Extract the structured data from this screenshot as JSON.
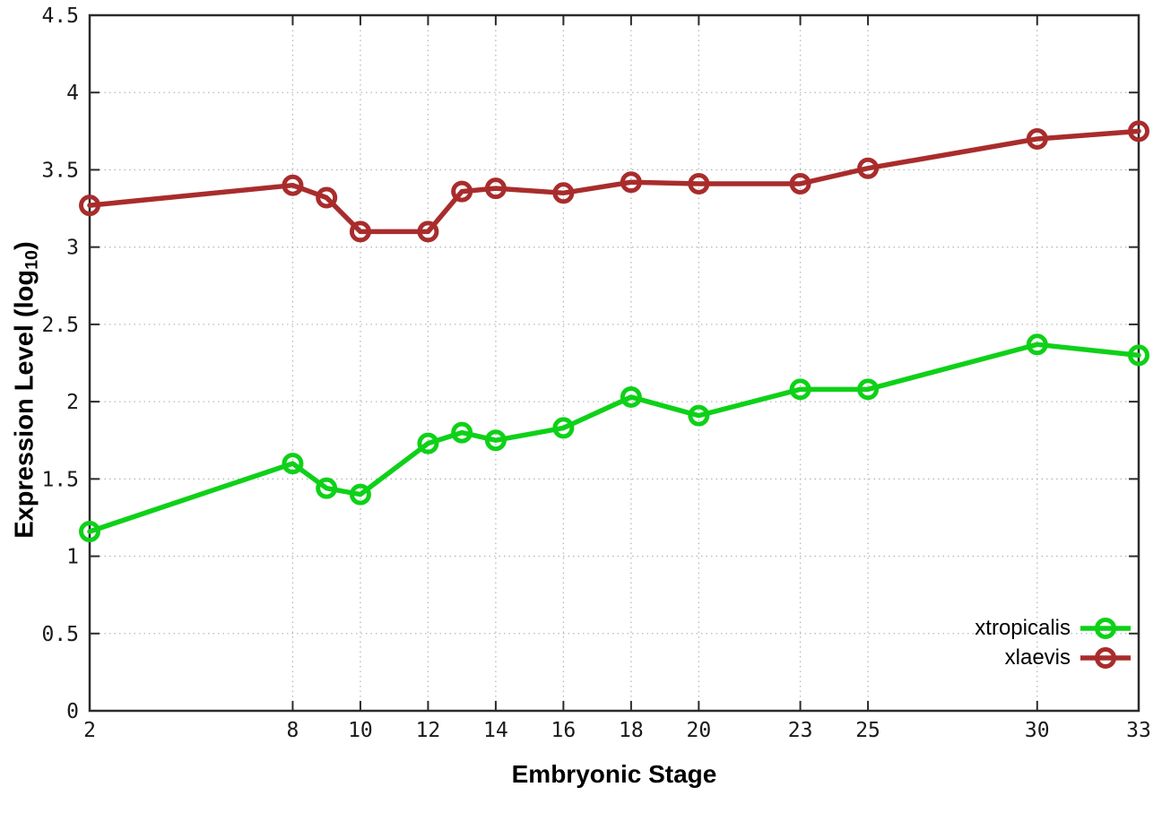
{
  "chart_data": {
    "type": "line",
    "title": "",
    "xlabel": "Embryonic Stage",
    "ylabel": "Expression Level (log10)",
    "ylabel_parts": [
      "Expression Level (log",
      "10",
      ")"
    ],
    "x": [
      2,
      8,
      9,
      10,
      12,
      13,
      14,
      16,
      18,
      20,
      23,
      25,
      30,
      33
    ],
    "x_ticks": [
      2,
      8,
      10,
      12,
      14,
      16,
      18,
      20,
      23,
      25,
      30,
      33
    ],
    "y_ticks": [
      0,
      0.5,
      1,
      1.5,
      2,
      2.5,
      3,
      3.5,
      4,
      4.5
    ],
    "xlim": [
      2,
      33
    ],
    "ylim": [
      0,
      4.5
    ],
    "grid": true,
    "grid_style": "dotted",
    "legend_position": "inside-bottom-right",
    "series": [
      {
        "name": "xtropicalis",
        "color": "#0ed118",
        "marker": "open-circle",
        "values": [
          1.16,
          1.6,
          1.44,
          1.4,
          1.73,
          1.8,
          1.75,
          1.83,
          2.03,
          1.91,
          2.08,
          2.08,
          2.37,
          2.3
        ]
      },
      {
        "name": "xlaevis",
        "color": "#a92c2c",
        "marker": "open-circle",
        "values": [
          3.27,
          3.4,
          3.32,
          3.1,
          3.1,
          3.36,
          3.38,
          3.35,
          3.42,
          3.41,
          3.41,
          3.51,
          3.7,
          3.75
        ]
      }
    ],
    "colors": {
      "border": "#2b2b2b",
      "grid": "#b8b8b8",
      "tick_text": "#1a1a1a"
    }
  }
}
